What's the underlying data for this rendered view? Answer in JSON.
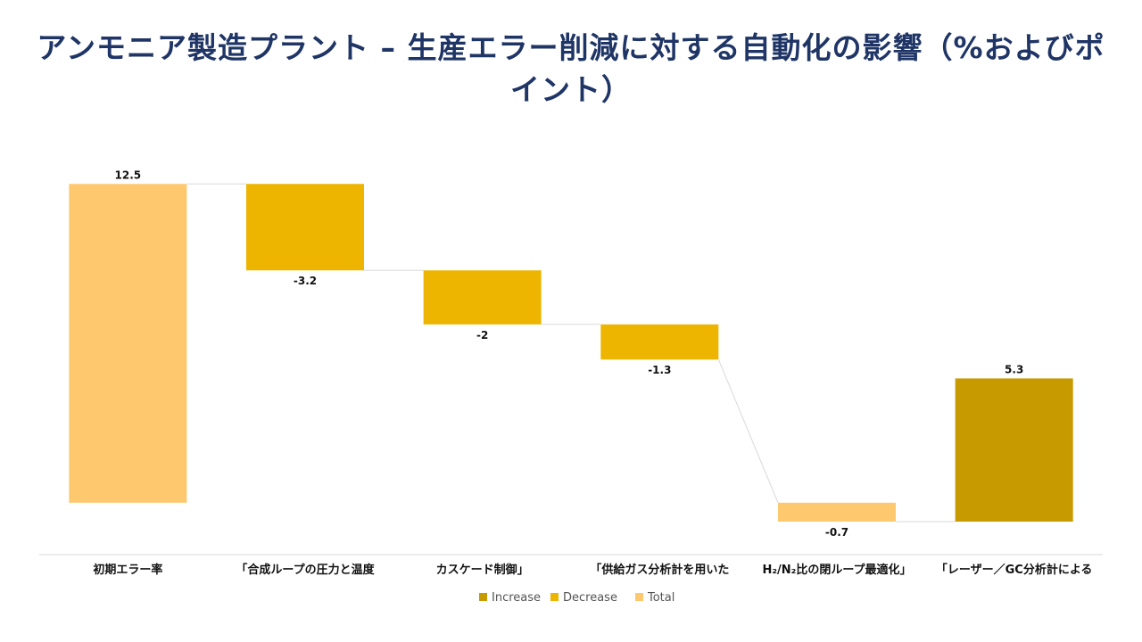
{
  "title": "アンモニア製造プラント – 生産エラー削減に対する自動化の影響（%およびポイント）",
  "colors": {
    "increase": "#c79a00",
    "decrease": "#edb500",
    "total": "#fdc86e",
    "connector": "#d9d9d9",
    "axis": "#d9d9d9"
  },
  "chart_data": {
    "type": "waterfall",
    "title": "アンモニア製造プラント – 生産エラー削減に対する自動化の影響（%およびポイント）",
    "categories": [
      "初期エラー率",
      "「合成ループの圧力と温度",
      "カスケード制御」",
      "「供給ガス分析計を用いた",
      "H₂/N₂比の閉ループ最適化」",
      "「レーザー／GC分析計による"
    ],
    "values": [
      12.5,
      -3.2,
      -2,
      -1.3,
      -0.7,
      5.3
    ],
    "data_labels": [
      "12.5",
      "-3.2",
      "-2",
      "-1.3",
      "-0.7",
      "5.3"
    ],
    "kinds": [
      "total",
      "decrease",
      "decrease",
      "decrease",
      "total",
      "increase"
    ],
    "legend": [
      {
        "key": "increase",
        "label": "Increase"
      },
      {
        "key": "decrease",
        "label": "Decrease"
      },
      {
        "key": "total",
        "label": "Total"
      }
    ],
    "legend_position": "bottom",
    "grid": false
  }
}
